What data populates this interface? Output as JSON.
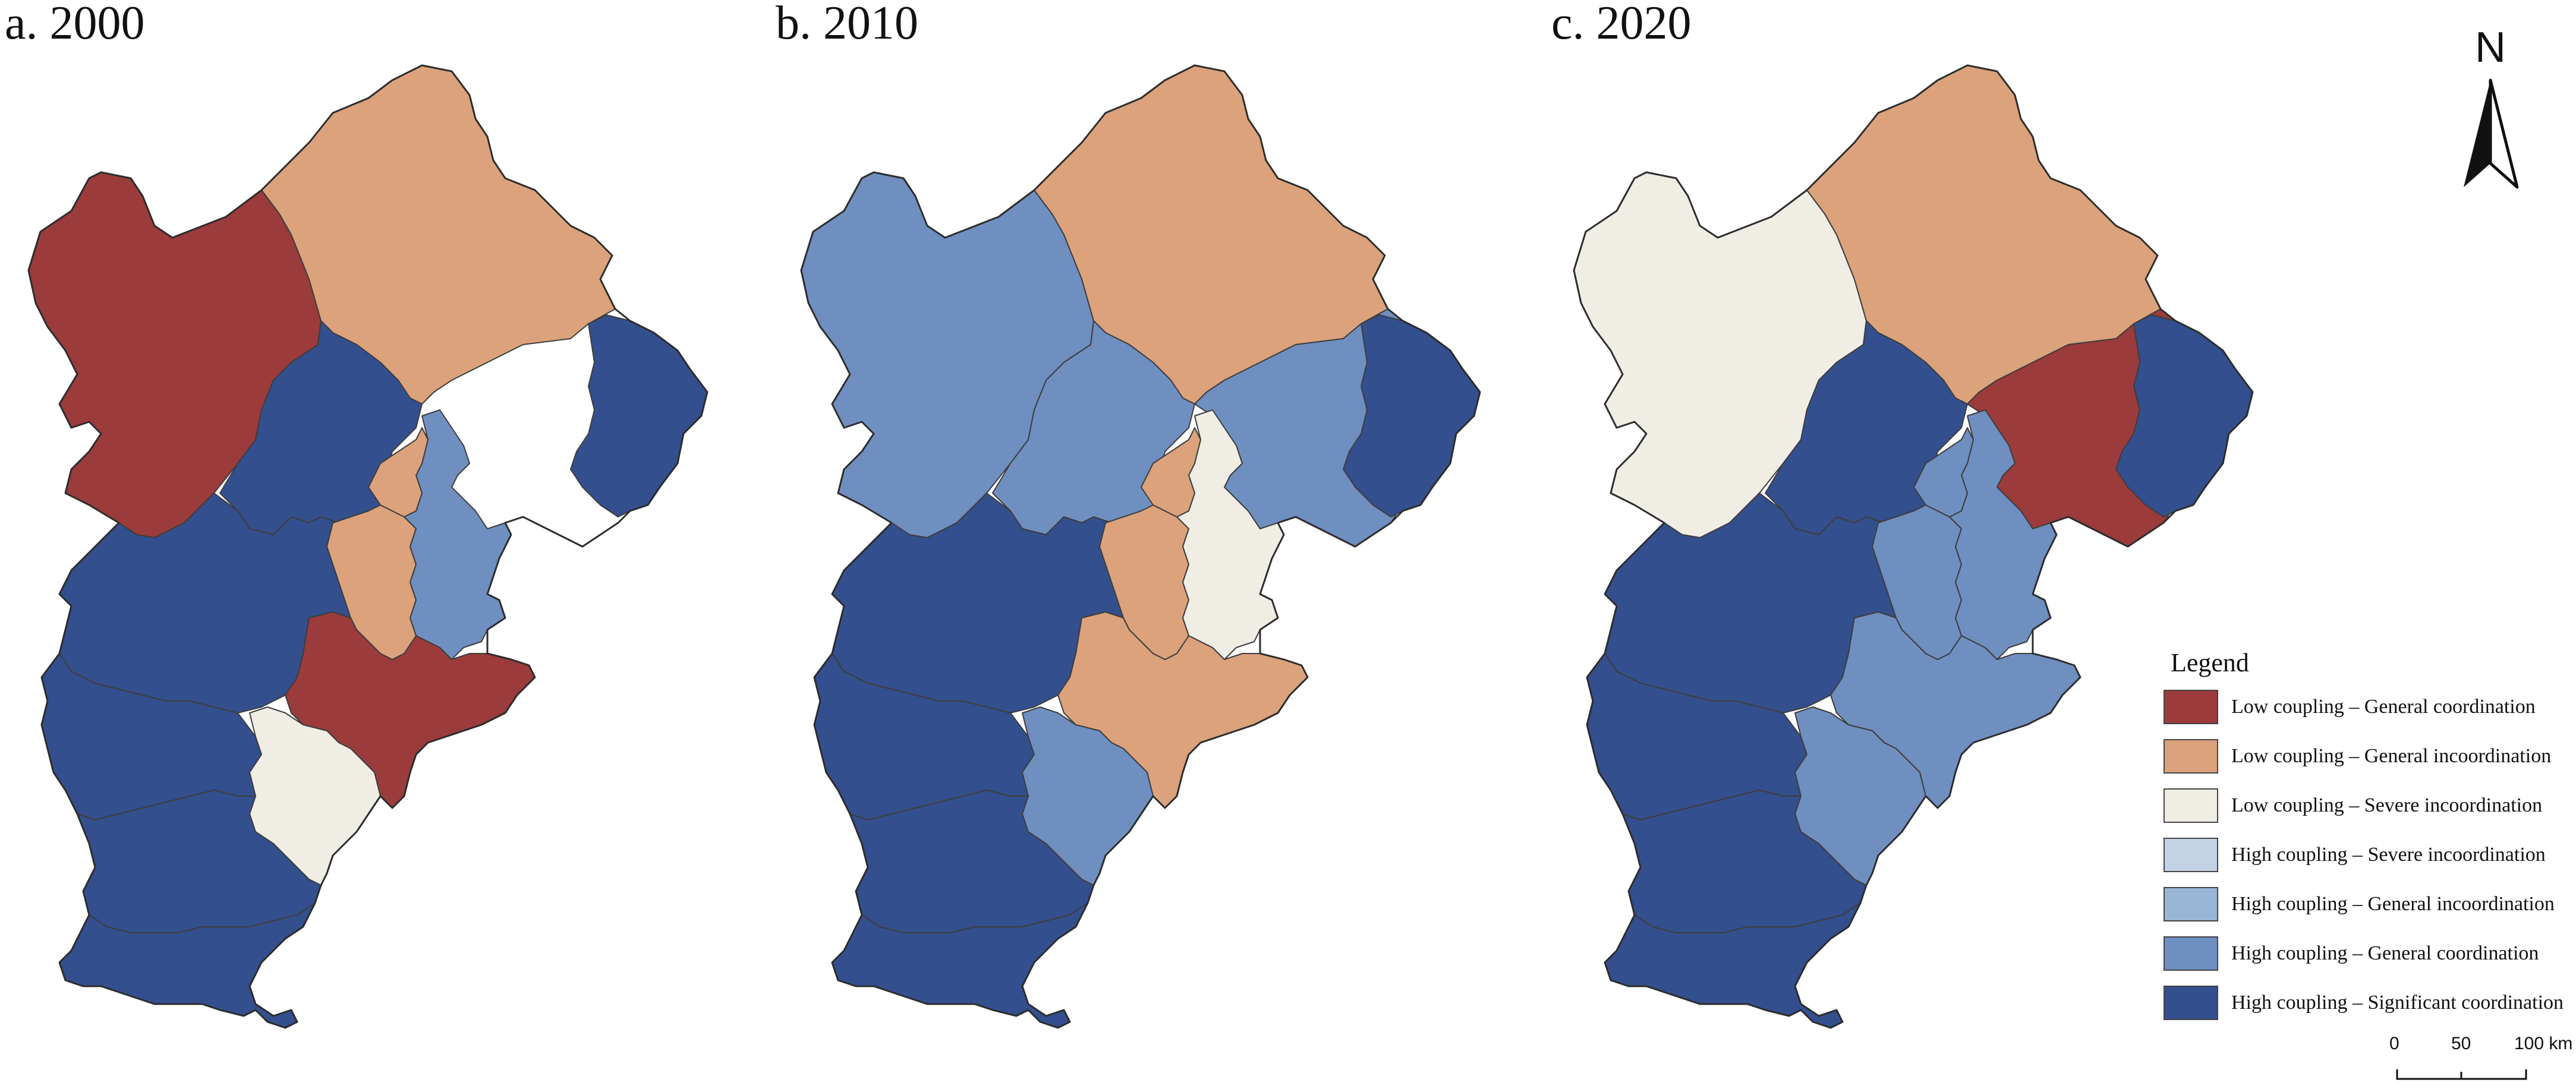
{
  "panels": [
    {
      "title": "a. 2000",
      "classes": {
        "NW": "low_general_coord",
        "N": "low_general_incoord",
        "C": "high_significant",
        "NE": "high_significant",
        "BJ": "low_general_incoord",
        "TJ": "high_general_coord",
        "MC": "low_general_incoord",
        "SE": "low_general_coord",
        "S1": "low_severe_incoord",
        "SW1": "high_significant",
        "SW2": "high_significant",
        "SW3": "high_significant",
        "SW4": "high_significant"
      }
    },
    {
      "title": "b. 2010",
      "classes": {
        "NW": "high_general_coord",
        "N": "low_general_incoord",
        "C": "high_general_coord",
        "NE": "high_significant",
        "NE2": "high_general_coord",
        "BJ": "low_general_incoord",
        "TJ": "low_severe_incoord",
        "MC": "low_general_incoord",
        "SE": "low_general_incoord",
        "S1": "high_general_coord",
        "SW1": "high_significant",
        "SW2": "high_significant",
        "SW3": "high_significant",
        "SW4": "high_significant"
      }
    },
    {
      "title": "c. 2020",
      "classes": {
        "NW": "low_severe_incoord",
        "N": "low_general_incoord",
        "C": "high_significant",
        "NE": "high_significant",
        "NE2": "low_general_coord",
        "BJ": "high_general_coord",
        "TJ": "high_general_coord",
        "MC": "high_general_coord",
        "SE": "high_general_coord",
        "S1": "high_general_coord",
        "SW1": "high_significant",
        "SW2": "high_significant",
        "SW3": "high_significant",
        "SW4": "high_significant"
      }
    }
  ],
  "north_arrow": {
    "label": "N"
  },
  "legend": {
    "title": "Legend",
    "items": [
      {
        "key": "low_general_coord",
        "label": "Low coupling – General coordination",
        "color": "#9b3b3b"
      },
      {
        "key": "low_general_incoord",
        "label": "Low coupling – General incoordination",
        "color": "#dba27c"
      },
      {
        "key": "low_severe_incoord",
        "label": "Low coupling – Severe incoordination",
        "color": "#efede4"
      },
      {
        "key": "high_severe_incoord",
        "label": "High coupling – Severe incoordination",
        "color": "#c3d2e4"
      },
      {
        "key": "high_general_incoord",
        "label": "High coupling – General incoordination",
        "color": "#9ab6d6"
      },
      {
        "key": "high_general_coord",
        "label": "High coupling – General coordination",
        "color": "#6f8fc1"
      },
      {
        "key": "high_significant",
        "label": "High coupling – Significant coordination",
        "color": "#334f8e"
      }
    ]
  },
  "scale_bar": {
    "ticks": [
      "0",
      "50",
      "100 km"
    ]
  }
}
